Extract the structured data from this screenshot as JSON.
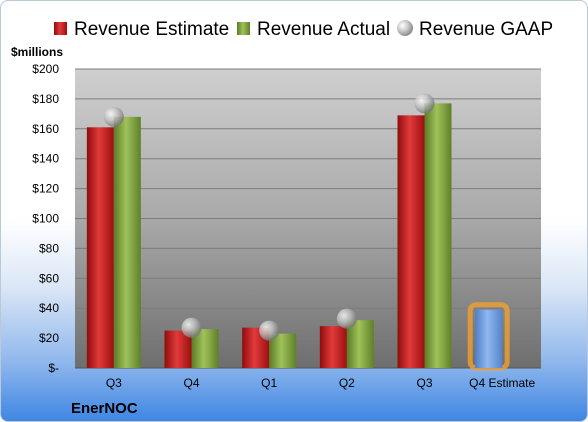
{
  "chart_data": {
    "type": "bar",
    "ylabel": "$millions",
    "ylim": [
      0,
      200
    ],
    "yticks": [
      "$-",
      "$20",
      "$40",
      "$60",
      "$80",
      "$100",
      "$120",
      "$140",
      "$160",
      "$180",
      "$200"
    ],
    "categories": [
      "Q3",
      "Q4",
      "Q1",
      "Q2",
      "Q3",
      "Q4 Estimate"
    ],
    "series": [
      {
        "name": "Revenue Estimate",
        "values": [
          161,
          25,
          27,
          28,
          169,
          39
        ],
        "color": "#cc1a1a"
      },
      {
        "name": "Revenue Actual",
        "values": [
          168,
          26,
          23,
          32,
          177,
          null
        ],
        "color": "#7ea23c"
      },
      {
        "name": "Revenue GAAP",
        "values": [
          168,
          27,
          25,
          33,
          177,
          null
        ],
        "color": "#a8a8a8"
      }
    ],
    "forecast_color": "#6f9ee0",
    "legend_position": "top",
    "grid": true,
    "company": "EnerNOC"
  }
}
